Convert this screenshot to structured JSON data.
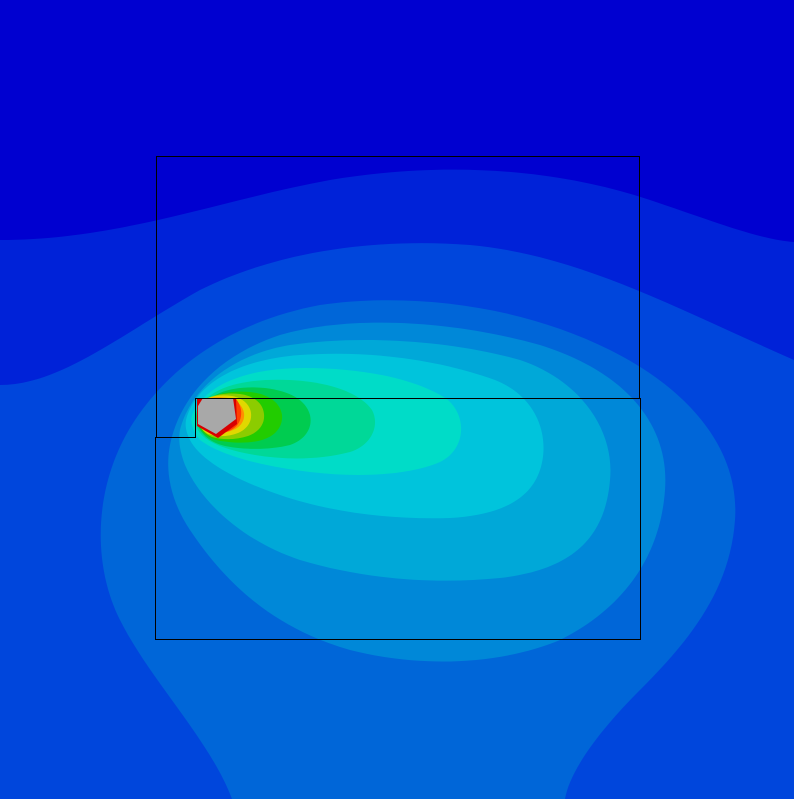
{
  "view": {
    "type": "fea-contour-plot",
    "colormap": "rainbow"
  },
  "colors": {
    "background": "#0000d0",
    "bands": [
      "#0022d8",
      "#0046dc",
      "#0066d8",
      "#0088d8",
      "#00a8d8",
      "#00c4dc",
      "#00dcc8",
      "#00d898",
      "#00cc50",
      "#22cc00",
      "#8ccc00",
      "#e0d800",
      "#ff9000",
      "#ff4000",
      "#d80000"
    ],
    "void": "#a8a8a8",
    "outline": "#000000"
  }
}
